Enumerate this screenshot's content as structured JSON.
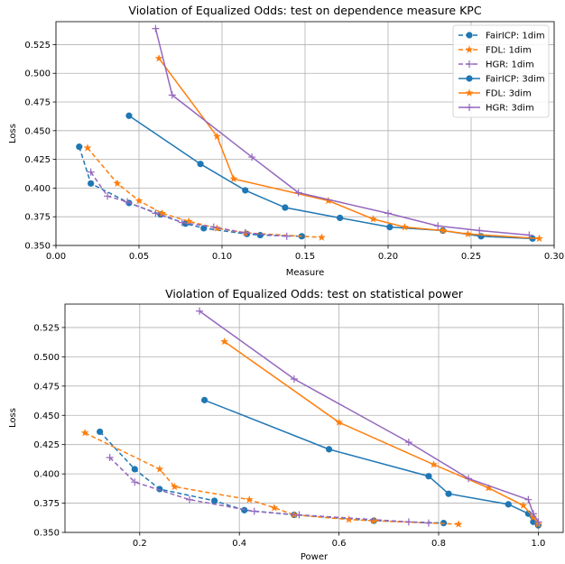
{
  "colors": {
    "FairICP": "#1f77b4",
    "FDL": "#ff7f0e",
    "HGR": "#9467bd",
    "grid": "#b0b0b0"
  },
  "chart_data": [
    {
      "type": "line",
      "title": "Violation of Equalized Odds: test on dependence measure KPC",
      "xlabel": "Measure",
      "ylabel": "Loss",
      "xlim": [
        0.0,
        0.3
      ],
      "ylim": [
        0.35,
        0.545
      ],
      "xticks": [
        "0.00",
        "0.05",
        "0.10",
        "0.15",
        "0.20",
        "0.25",
        "0.30"
      ],
      "yticks": [
        "0.350",
        "0.375",
        "0.400",
        "0.425",
        "0.450",
        "0.475",
        "0.500",
        "0.525"
      ],
      "grid": true,
      "legend": "top-right",
      "series": [
        {
          "name": "FairICP: 1dim",
          "method": "FairICP",
          "style": "dashed",
          "marker": "circle",
          "x": [
            0.014,
            0.021,
            0.044,
            0.063,
            0.078,
            0.089,
            0.115,
            0.123,
            0.148
          ],
          "y": [
            0.436,
            0.404,
            0.387,
            0.377,
            0.369,
            0.365,
            0.36,
            0.359,
            0.358
          ]
        },
        {
          "name": "FDL: 1dim",
          "method": "FDL",
          "style": "dashed",
          "marker": "star",
          "x": [
            0.019,
            0.037,
            0.05,
            0.064,
            0.08,
            0.097,
            0.114,
            0.16
          ],
          "y": [
            0.435,
            0.404,
            0.389,
            0.378,
            0.371,
            0.365,
            0.361,
            0.357
          ]
        },
        {
          "name": "HGR: 1dim",
          "method": "HGR",
          "style": "dashed",
          "marker": "plus",
          "x": [
            0.021,
            0.031,
            0.043,
            0.06,
            0.076,
            0.095,
            0.114,
            0.139
          ],
          "y": [
            0.414,
            0.393,
            0.388,
            0.378,
            0.37,
            0.366,
            0.361,
            0.358
          ]
        },
        {
          "name": "FairICP: 3dim",
          "method": "FairICP",
          "style": "solid",
          "marker": "circle",
          "x": [
            0.044,
            0.087,
            0.114,
            0.138,
            0.171,
            0.201,
            0.233,
            0.256,
            0.287
          ],
          "y": [
            0.463,
            0.421,
            0.398,
            0.383,
            0.374,
            0.366,
            0.363,
            0.358,
            0.356
          ]
        },
        {
          "name": "FDL: 3dim",
          "method": "FDL",
          "style": "solid",
          "marker": "star",
          "x": [
            0.062,
            0.097,
            0.107,
            0.164,
            0.191,
            0.21,
            0.233,
            0.248,
            0.291
          ],
          "y": [
            0.513,
            0.445,
            0.408,
            0.389,
            0.373,
            0.366,
            0.363,
            0.36,
            0.356
          ]
        },
        {
          "name": "HGR: 3dim",
          "method": "HGR",
          "style": "solid",
          "marker": "plus",
          "x": [
            0.06,
            0.07,
            0.118,
            0.146,
            0.2,
            0.23,
            0.255,
            0.285
          ],
          "y": [
            0.539,
            0.481,
            0.427,
            0.396,
            0.378,
            0.367,
            0.363,
            0.359
          ]
        }
      ]
    },
    {
      "type": "line",
      "title": "Violation of Equalized Odds: test on statistical power",
      "xlabel": "Power",
      "ylabel": "Loss",
      "xlim": [
        0.05,
        1.05
      ],
      "ylim": [
        0.35,
        0.545
      ],
      "xticks": [
        "0.2",
        "0.4",
        "0.6",
        "0.8",
        "1.0"
      ],
      "yticks": [
        "0.350",
        "0.375",
        "0.400",
        "0.425",
        "0.450",
        "0.475",
        "0.500",
        "0.525"
      ],
      "grid": true,
      "legend": "none",
      "series": [
        {
          "name": "FairICP: 1dim",
          "method": "FairICP",
          "style": "dashed",
          "marker": "circle",
          "x": [
            0.12,
            0.19,
            0.24,
            0.35,
            0.41,
            0.51,
            0.67,
            0.81
          ],
          "y": [
            0.436,
            0.404,
            0.387,
            0.377,
            0.369,
            0.365,
            0.36,
            0.358
          ]
        },
        {
          "name": "FDL: 1dim",
          "method": "FDL",
          "style": "dashed",
          "marker": "star",
          "x": [
            0.09,
            0.24,
            0.27,
            0.42,
            0.47,
            0.51,
            0.62,
            0.67,
            0.84
          ],
          "y": [
            0.435,
            0.404,
            0.389,
            0.378,
            0.371,
            0.365,
            0.361,
            0.36,
            0.357
          ]
        },
        {
          "name": "HGR: 1dim",
          "method": "HGR",
          "style": "dashed",
          "marker": "plus",
          "x": [
            0.14,
            0.19,
            0.3,
            0.43,
            0.52,
            0.74,
            0.78
          ],
          "y": [
            0.414,
            0.393,
            0.378,
            0.368,
            0.365,
            0.359,
            0.358
          ]
        },
        {
          "name": "FairICP: 3dim",
          "method": "FairICP",
          "style": "solid",
          "marker": "circle",
          "x": [
            0.33,
            0.58,
            0.78,
            0.82,
            0.94,
            0.98,
            0.99,
            1.0
          ],
          "y": [
            0.463,
            0.421,
            0.398,
            0.383,
            0.374,
            0.366,
            0.359,
            0.356
          ]
        },
        {
          "name": "FDL: 3dim",
          "method": "FDL",
          "style": "solid",
          "marker": "star",
          "x": [
            0.37,
            0.6,
            0.79,
            0.9,
            0.97,
            0.99,
            1.0
          ],
          "y": [
            0.513,
            0.444,
            0.408,
            0.388,
            0.373,
            0.363,
            0.357
          ]
        },
        {
          "name": "HGR: 3dim",
          "method": "HGR",
          "style": "solid",
          "marker": "plus",
          "x": [
            0.32,
            0.51,
            0.74,
            0.86,
            0.98,
            0.99,
            1.0
          ],
          "y": [
            0.539,
            0.481,
            0.427,
            0.396,
            0.378,
            0.366,
            0.359
          ]
        }
      ]
    }
  ]
}
